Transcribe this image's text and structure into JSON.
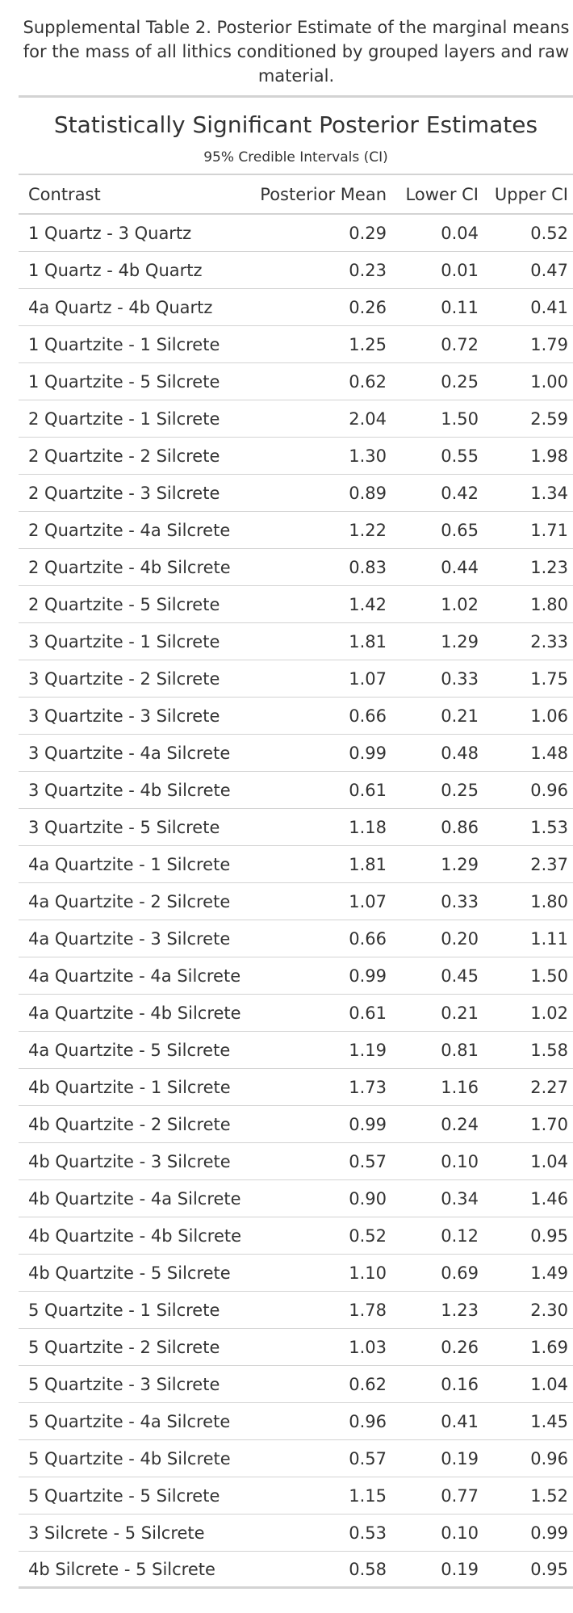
{
  "caption": "Supplemental Table 2. Posterior Estimate of the marginal means for the mass of all lithics conditioned by grouped layers and raw material.",
  "table": {
    "title": "Statistically Significant Posterior Estimates",
    "subtitle": "95% Credible Intervals (CI)",
    "headers": {
      "contrast": "Contrast",
      "mean": "Posterior Mean",
      "lower": "Lower CI",
      "upper": "Upper CI"
    },
    "rows": [
      {
        "contrast": "1 Quartz - 3 Quartz",
        "mean": "0.29",
        "lower": "0.04",
        "upper": "0.52"
      },
      {
        "contrast": "1 Quartz - 4b Quartz",
        "mean": "0.23",
        "lower": "0.01",
        "upper": "0.47"
      },
      {
        "contrast": "4a Quartz - 4b Quartz",
        "mean": "0.26",
        "lower": "0.11",
        "upper": "0.41"
      },
      {
        "contrast": "1 Quartzite - 1 Silcrete",
        "mean": "1.25",
        "lower": "0.72",
        "upper": "1.79"
      },
      {
        "contrast": "1 Quartzite - 5 Silcrete",
        "mean": "0.62",
        "lower": "0.25",
        "upper": "1.00"
      },
      {
        "contrast": "2 Quartzite - 1 Silcrete",
        "mean": "2.04",
        "lower": "1.50",
        "upper": "2.59"
      },
      {
        "contrast": "2 Quartzite - 2 Silcrete",
        "mean": "1.30",
        "lower": "0.55",
        "upper": "1.98"
      },
      {
        "contrast": "2 Quartzite - 3 Silcrete",
        "mean": "0.89",
        "lower": "0.42",
        "upper": "1.34"
      },
      {
        "contrast": "2 Quartzite - 4a Silcrete",
        "mean": "1.22",
        "lower": "0.65",
        "upper": "1.71"
      },
      {
        "contrast": "2 Quartzite - 4b Silcrete",
        "mean": "0.83",
        "lower": "0.44",
        "upper": "1.23"
      },
      {
        "contrast": "2 Quartzite - 5 Silcrete",
        "mean": "1.42",
        "lower": "1.02",
        "upper": "1.80"
      },
      {
        "contrast": "3 Quartzite - 1 Silcrete",
        "mean": "1.81",
        "lower": "1.29",
        "upper": "2.33"
      },
      {
        "contrast": "3 Quartzite - 2 Silcrete",
        "mean": "1.07",
        "lower": "0.33",
        "upper": "1.75"
      },
      {
        "contrast": "3 Quartzite - 3 Silcrete",
        "mean": "0.66",
        "lower": "0.21",
        "upper": "1.06"
      },
      {
        "contrast": "3 Quartzite - 4a Silcrete",
        "mean": "0.99",
        "lower": "0.48",
        "upper": "1.48"
      },
      {
        "contrast": "3 Quartzite - 4b Silcrete",
        "mean": "0.61",
        "lower": "0.25",
        "upper": "0.96"
      },
      {
        "contrast": "3 Quartzite - 5 Silcrete",
        "mean": "1.18",
        "lower": "0.86",
        "upper": "1.53"
      },
      {
        "contrast": "4a Quartzite - 1 Silcrete",
        "mean": "1.81",
        "lower": "1.29",
        "upper": "2.37"
      },
      {
        "contrast": "4a Quartzite - 2 Silcrete",
        "mean": "1.07",
        "lower": "0.33",
        "upper": "1.80"
      },
      {
        "contrast": "4a Quartzite - 3 Silcrete",
        "mean": "0.66",
        "lower": "0.20",
        "upper": "1.11"
      },
      {
        "contrast": "4a Quartzite - 4a Silcrete",
        "mean": "0.99",
        "lower": "0.45",
        "upper": "1.50"
      },
      {
        "contrast": "4a Quartzite - 4b Silcrete",
        "mean": "0.61",
        "lower": "0.21",
        "upper": "1.02"
      },
      {
        "contrast": "4a Quartzite - 5 Silcrete",
        "mean": "1.19",
        "lower": "0.81",
        "upper": "1.58"
      },
      {
        "contrast": "4b Quartzite - 1 Silcrete",
        "mean": "1.73",
        "lower": "1.16",
        "upper": "2.27"
      },
      {
        "contrast": "4b Quartzite - 2 Silcrete",
        "mean": "0.99",
        "lower": "0.24",
        "upper": "1.70"
      },
      {
        "contrast": "4b Quartzite - 3 Silcrete",
        "mean": "0.57",
        "lower": "0.10",
        "upper": "1.04"
      },
      {
        "contrast": "4b Quartzite - 4a Silcrete",
        "mean": "0.90",
        "lower": "0.34",
        "upper": "1.46"
      },
      {
        "contrast": "4b Quartzite - 4b Silcrete",
        "mean": "0.52",
        "lower": "0.12",
        "upper": "0.95"
      },
      {
        "contrast": "4b Quartzite - 5 Silcrete",
        "mean": "1.10",
        "lower": "0.69",
        "upper": "1.49"
      },
      {
        "contrast": "5 Quartzite - 1 Silcrete",
        "mean": "1.78",
        "lower": "1.23",
        "upper": "2.30"
      },
      {
        "contrast": "5 Quartzite - 2 Silcrete",
        "mean": "1.03",
        "lower": "0.26",
        "upper": "1.69"
      },
      {
        "contrast": "5 Quartzite - 3 Silcrete",
        "mean": "0.62",
        "lower": "0.16",
        "upper": "1.04"
      },
      {
        "contrast": "5 Quartzite - 4a Silcrete",
        "mean": "0.96",
        "lower": "0.41",
        "upper": "1.45"
      },
      {
        "contrast": "5 Quartzite - 4b Silcrete",
        "mean": "0.57",
        "lower": "0.19",
        "upper": "0.96"
      },
      {
        "contrast": "5 Quartzite - 5 Silcrete",
        "mean": "1.15",
        "lower": "0.77",
        "upper": "1.52"
      },
      {
        "contrast": "3 Silcrete - 5 Silcrete",
        "mean": "0.53",
        "lower": "0.10",
        "upper": "0.99"
      },
      {
        "contrast": "4b Silcrete - 5 Silcrete",
        "mean": "0.58",
        "lower": "0.19",
        "upper": "0.95"
      }
    ]
  }
}
